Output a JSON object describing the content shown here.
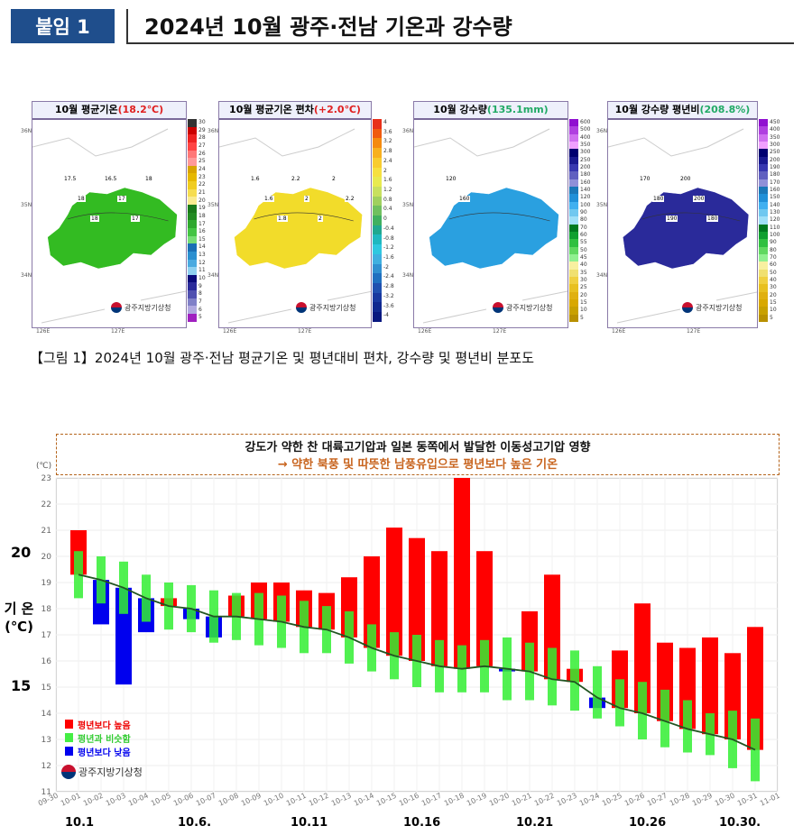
{
  "header": {
    "badge": "붙임 1",
    "title": "2024년 10월 광주·전남 기온과 강수량"
  },
  "maps": [
    {
      "title": "10월 평균기온",
      "value": "(18.2℃)",
      "value_color": "#e02020",
      "fill": "#33bb22",
      "labels": [
        "30",
        "29",
        "28",
        "27",
        "26",
        "25",
        "24",
        "23",
        "22",
        "21",
        "20",
        "19",
        "18",
        "17",
        "16",
        "15",
        "14",
        "13",
        "12",
        "11",
        "10",
        "9",
        "8",
        "7",
        "6",
        "5"
      ],
      "colors": [
        "#333",
        "#c00",
        "#e22",
        "#f44",
        "#f77",
        "#f99",
        "#d9a400",
        "#e6b800",
        "#f0cc20",
        "#f6dd50",
        "#faeb90",
        "#1a7a1a",
        "#228b22",
        "#2fa82f",
        "#44c444",
        "#77dd77",
        "#1a6fb5",
        "#2a8fd0",
        "#4aaae0",
        "#8fd0f0",
        "#0a0a7a",
        "#2a2a9a",
        "#5050b0",
        "#8080c8",
        "#b0a8e0",
        "#a020c0"
      ],
      "contours": [
        "17.5",
        "18",
        "18",
        "16.5",
        "17",
        "17",
        "18"
      ]
    },
    {
      "title": "10월 평균기온 편차",
      "value": "(+2.0℃)",
      "value_color": "#e02020",
      "fill": "#f2dc2a",
      "labels": [
        "4",
        "3.6",
        "3.2",
        "2.8",
        "2.4",
        "2",
        "1.6",
        "1.2",
        "0.8",
        "0.4",
        "0",
        "-0.4",
        "-0.8",
        "-1.2",
        "-1.6",
        "-2",
        "-2.4",
        "-2.8",
        "-3.2",
        "-3.6",
        "-4"
      ],
      "colors": [
        "#e8301a",
        "#f05a10",
        "#f58a10",
        "#f8b020",
        "#f8cc30",
        "#f6e040",
        "#e8ea50",
        "#c8e060",
        "#a0d060",
        "#70c060",
        "#40b060",
        "#20a890",
        "#20b8c0",
        "#30c8e0",
        "#40b0e0",
        "#3090d0",
        "#2070c0",
        "#2050b0",
        "#1838a0",
        "#102890",
        "#081880"
      ],
      "contours": [
        "1.6",
        "1.6",
        "1.8",
        "2.2",
        "2",
        "2",
        "2",
        "2.2"
      ]
    },
    {
      "title": "10월 강수량",
      "value": "(135.1mm)",
      "value_color": "#22aa66",
      "fill": "#2aa0e0",
      "labels": [
        "600",
        "500",
        "400",
        "350",
        "300",
        "250",
        "200",
        "180",
        "160",
        "140",
        "120",
        "100",
        "90",
        "80",
        "70",
        "60",
        "55",
        "50",
        "45",
        "40",
        "35",
        "30",
        "25",
        "20",
        "15",
        "10",
        "5"
      ],
      "colors": [
        "#9010d0",
        "#b040e0",
        "#d070f0",
        "#f0a0ff",
        "#000070",
        "#1a1a90",
        "#3838b0",
        "#6060c0",
        "#9090d8",
        "#1a78b8",
        "#2090d8",
        "#40b0f0",
        "#70c8f0",
        "#a0e0f8",
        "#007a20",
        "#10a030",
        "#30c040",
        "#60d860",
        "#90f090",
        "#f8f0a0",
        "#f0e070",
        "#f0d040",
        "#e8c020",
        "#e0b010",
        "#d8a800",
        "#c8a000",
        "#b89000"
      ],
      "contours": [
        "120",
        "160"
      ]
    },
    {
      "title": "10월 강수량 평년비",
      "value": "(208.8%)",
      "value_color": "#22aa66",
      "fill": "#2a2a9a",
      "labels": [
        "450",
        "400",
        "350",
        "300",
        "250",
        "200",
        "190",
        "180",
        "170",
        "160",
        "150",
        "140",
        "130",
        "120",
        "110",
        "100",
        "90",
        "80",
        "70",
        "60",
        "50",
        "40",
        "30",
        "20",
        "15",
        "10",
        "5"
      ],
      "colors": [
        "#9010d0",
        "#b040e0",
        "#d070f0",
        "#f0a0ff",
        "#000070",
        "#1a1a90",
        "#3838b0",
        "#6060c0",
        "#9090d8",
        "#1a78b8",
        "#2090d8",
        "#40b0f0",
        "#70c8f0",
        "#a0e0f8",
        "#007a20",
        "#10a030",
        "#30c040",
        "#60d860",
        "#90f090",
        "#f8f0a0",
        "#f0e070",
        "#f0d040",
        "#e8c020",
        "#e0b010",
        "#d8a800",
        "#c8a000",
        "#b89000"
      ],
      "contours": [
        "170",
        "180",
        "190",
        "200",
        "200",
        "180"
      ]
    }
  ],
  "map_common": {
    "lat": [
      "36N",
      "35N",
      "34N"
    ],
    "lon": [
      "126E",
      "127E"
    ],
    "agency": "광주지방기상청"
  },
  "caption": "【그림 1】2024년 10월 광주·전남 평균기온 및 평년대비 편차, 강수량 및 평년비 분포도",
  "chart_data": {
    "type": "bar",
    "title_line1": "강도가 약한 찬 대륙고기압과 일본 동쪽에서 발달한 이동성고기압 영향",
    "title_line2": "→ 약한 북풍 및 따뜻한 남풍유입으로 평년보다 높은 기온",
    "ylabel": "기 온 (℃)",
    "yunit": "(℃)",
    "ylim": [
      11,
      23
    ],
    "yticks": [
      "11",
      "12",
      "13",
      "14",
      "15",
      "16",
      "17",
      "18",
      "19",
      "20",
      "21",
      "22",
      "23"
    ],
    "ybig": [
      "20",
      "15"
    ],
    "xticks": [
      "09-30",
      "10-01",
      "10-02",
      "10-03",
      "10-04",
      "10-05",
      "10-06",
      "10-07",
      "10-08",
      "10-09",
      "10-10",
      "10-11",
      "10-12",
      "10-13",
      "10-14",
      "10-15",
      "10-16",
      "10-17",
      "10-18",
      "10-19",
      "10-20",
      "10-21",
      "10-22",
      "10-23",
      "10-24",
      "10-25",
      "10-26",
      "10-27",
      "10-28",
      "10-29",
      "10-30",
      "10-31",
      "11-01"
    ],
    "bottom_labels": [
      {
        "day": 1,
        "text": "10.1"
      },
      {
        "day": 6,
        "text": "10.6."
      },
      {
        "day": 11,
        "text": "10.11"
      },
      {
        "day": 16,
        "text": "10.16"
      },
      {
        "day": 21,
        "text": "10.21"
      },
      {
        "day": 26,
        "text": "10.26"
      },
      {
        "day": 30,
        "text": "10.30."
      }
    ],
    "observed": [
      21.0,
      17.4,
      15.1,
      17.1,
      18.4,
      17.6,
      16.9,
      18.5,
      19.0,
      19.0,
      18.7,
      18.6,
      19.2,
      20.0,
      21.1,
      20.7,
      20.2,
      23.0,
      20.2,
      15.6,
      17.9,
      19.3,
      15.7,
      14.2,
      16.4,
      18.2,
      16.7,
      16.5,
      16.9,
      16.3,
      17.3
    ],
    "normal": [
      19.3,
      19.1,
      18.8,
      18.4,
      18.1,
      18.0,
      17.7,
      17.7,
      17.6,
      17.5,
      17.3,
      17.2,
      16.9,
      16.5,
      16.2,
      16.0,
      15.8,
      15.7,
      15.8,
      15.7,
      15.6,
      15.3,
      15.2,
      14.6,
      14.2,
      14.0,
      13.7,
      13.4,
      13.2,
      13.0,
      12.6
    ],
    "normal_low": [
      18.4,
      18.2,
      17.8,
      17.5,
      17.2,
      17.1,
      16.7,
      16.8,
      16.6,
      16.5,
      16.3,
      16.3,
      15.9,
      15.6,
      15.3,
      15.0,
      14.8,
      14.8,
      14.8,
      14.5,
      14.5,
      14.3,
      14.1,
      13.8,
      13.5,
      13.0,
      12.7,
      12.5,
      12.4,
      11.9,
      11.4
    ],
    "normal_high": [
      20.2,
      20.0,
      19.8,
      19.3,
      19.0,
      18.9,
      18.7,
      18.6,
      18.6,
      18.5,
      18.3,
      18.1,
      17.9,
      17.4,
      17.1,
      17.0,
      16.8,
      16.6,
      16.8,
      16.9,
      16.7,
      16.5,
      16.4,
      15.8,
      15.3,
      15.2,
      14.9,
      14.5,
      14.0,
      14.1,
      13.8
    ],
    "legend": [
      {
        "label": "평년보다 높음",
        "color": "#ff0000"
      },
      {
        "label": "평년과 비슷함",
        "color": "#44ee44"
      },
      {
        "label": "평년보다 낮음",
        "color": "#0000ee"
      }
    ],
    "agency": "광주지방기상청"
  }
}
